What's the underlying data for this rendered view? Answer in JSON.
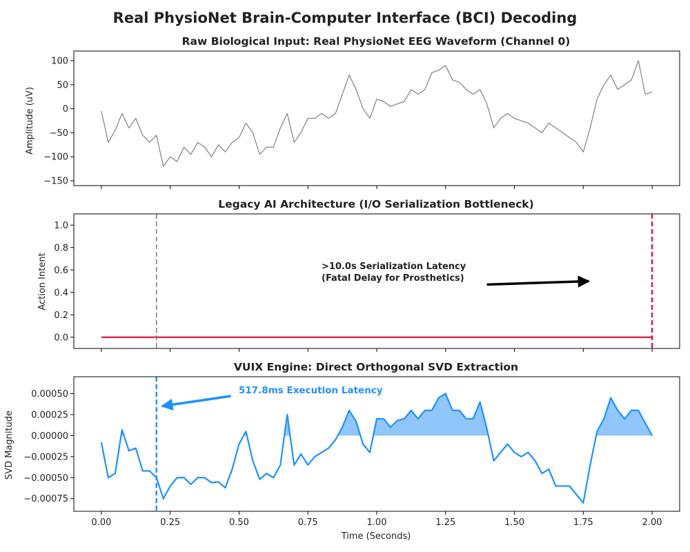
{
  "figure": {
    "title": "Real PhysioNet Brain-Computer Interface (BCI) Decoding"
  },
  "chart_data": [
    {
      "type": "line",
      "title": "Raw Biological Input: Real PhysioNet EEG Waveform (Channel 0)",
      "xlabel": "",
      "ylabel": "Amplitude (uV)",
      "xlim": [
        -0.1,
        2.1
      ],
      "ylim": [
        -160,
        120
      ],
      "xticks": [
        0.0,
        0.25,
        0.5,
        0.75,
        1.0,
        1.25,
        1.5,
        1.75,
        2.0
      ],
      "xtick_labels_visible": false,
      "yticks": [
        -150,
        -100,
        -50,
        0,
        50,
        100
      ],
      "ytick_labels": [
        "−150",
        "−100",
        "−50",
        "0",
        "50",
        "100"
      ],
      "grid": false,
      "series": [
        {
          "color": "#808080",
          "x": [
            0.0,
            0.025,
            0.05,
            0.075,
            0.1,
            0.125,
            0.15,
            0.175,
            0.2,
            0.225,
            0.25,
            0.275,
            0.3,
            0.325,
            0.35,
            0.375,
            0.4,
            0.425,
            0.45,
            0.475,
            0.5,
            0.525,
            0.55,
            0.575,
            0.6,
            0.625,
            0.65,
            0.675,
            0.7,
            0.725,
            0.75,
            0.775,
            0.8,
            0.825,
            0.85,
            0.875,
            0.9,
            0.925,
            0.95,
            0.975,
            1.0,
            1.025,
            1.05,
            1.075,
            1.1,
            1.125,
            1.15,
            1.175,
            1.2,
            1.225,
            1.25,
            1.275,
            1.3,
            1.325,
            1.35,
            1.375,
            1.4,
            1.425,
            1.45,
            1.475,
            1.5,
            1.525,
            1.55,
            1.575,
            1.6,
            1.625,
            1.65,
            1.675,
            1.7,
            1.725,
            1.75,
            1.775,
            1.8,
            1.825,
            1.85,
            1.875,
            1.9,
            1.925,
            1.95,
            1.975,
            2.0
          ],
          "values": [
            -5,
            -70,
            -45,
            -10,
            -40,
            -20,
            -55,
            -70,
            -55,
            -120,
            -100,
            -110,
            -80,
            -95,
            -70,
            -80,
            -100,
            -75,
            -90,
            -70,
            -60,
            -30,
            -50,
            -95,
            -80,
            -80,
            -40,
            -10,
            -70,
            -50,
            -20,
            -20,
            -10,
            -20,
            -10,
            30,
            70,
            40,
            0,
            -20,
            20,
            15,
            5,
            10,
            15,
            40,
            30,
            40,
            75,
            80,
            90,
            60,
            55,
            40,
            30,
            40,
            10,
            -40,
            -20,
            -10,
            -20,
            -25,
            -30,
            -40,
            -50,
            -30,
            -40,
            -50,
            -60,
            -70,
            -90,
            -40,
            20,
            50,
            70,
            40,
            50,
            60,
            100,
            30,
            35
          ]
        }
      ]
    },
    {
      "type": "line",
      "title": "Legacy AI Architecture (I/O Serialization Bottleneck)",
      "xlabel": "",
      "ylabel": "Action Intent",
      "xlim": [
        -0.1,
        2.1
      ],
      "ylim": [
        -0.1,
        1.1
      ],
      "xticks": [
        0.0,
        0.25,
        0.5,
        0.75,
        1.0,
        1.25,
        1.5,
        1.75,
        2.0
      ],
      "xtick_labels_visible": false,
      "yticks": [
        0.0,
        0.2,
        0.4,
        0.6,
        0.8,
        1.0
      ],
      "ytick_labels": [
        "0.0",
        "0.2",
        "0.4",
        "0.6",
        "0.8",
        "1.0"
      ],
      "grid": false,
      "series": [
        {
          "color": "#dc143c",
          "x": [
            0.0,
            2.0
          ],
          "values": [
            0.0,
            0.0
          ]
        }
      ],
      "vlines": [
        {
          "x": 0.2,
          "color": "#808080",
          "style": "dashed"
        },
        {
          "x": 2.0,
          "color": "#dc143c",
          "style": "dashed"
        }
      ],
      "annotation": {
        "lines": [
          ">10.0s Serialization Latency",
          "(Fatal Delay for Prosthetics)"
        ],
        "text_x": 0.8,
        "text_y": 0.56,
        "arrow_from": [
          1.4,
          0.47
        ],
        "arrow_to": [
          1.77,
          0.5
        ]
      }
    },
    {
      "type": "area",
      "title": "VUIX Engine: Direct Orthogonal SVD Extraction",
      "xlabel": "Time (Seconds)",
      "ylabel": "SVD Magnitude",
      "xlim": [
        -0.1,
        2.1
      ],
      "ylim": [
        -0.0009,
        0.0007
      ],
      "xticks": [
        0.0,
        0.25,
        0.5,
        0.75,
        1.0,
        1.25,
        1.5,
        1.75,
        2.0
      ],
      "xtick_labels": [
        "0.00",
        "0.25",
        "0.50",
        "0.75",
        "1.00",
        "1.25",
        "1.50",
        "1.75",
        "2.00"
      ],
      "yticks": [
        -0.00075,
        -0.0005,
        -0.00025,
        0.0,
        0.00025,
        0.0005
      ],
      "ytick_labels": [
        "−0.00075",
        "−0.00050",
        "−0.00025",
        "0.00000",
        "0.00025",
        "0.00050"
      ],
      "grid": false,
      "series": [
        {
          "color": "#1e90ff",
          "fill_color": "#90c6fa",
          "fill_where": "positive",
          "x": [
            0.0,
            0.025,
            0.05,
            0.075,
            0.1,
            0.125,
            0.15,
            0.175,
            0.2,
            0.225,
            0.25,
            0.275,
            0.3,
            0.325,
            0.35,
            0.375,
            0.4,
            0.425,
            0.45,
            0.475,
            0.5,
            0.525,
            0.55,
            0.575,
            0.6,
            0.625,
            0.65,
            0.675,
            0.7,
            0.725,
            0.75,
            0.775,
            0.8,
            0.825,
            0.85,
            0.875,
            0.9,
            0.925,
            0.95,
            0.975,
            1.0,
            1.025,
            1.05,
            1.075,
            1.1,
            1.125,
            1.15,
            1.175,
            1.2,
            1.225,
            1.25,
            1.275,
            1.3,
            1.325,
            1.35,
            1.375,
            1.4,
            1.425,
            1.45,
            1.475,
            1.5,
            1.525,
            1.55,
            1.575,
            1.6,
            1.625,
            1.65,
            1.675,
            1.7,
            1.725,
            1.75,
            1.775,
            1.8,
            1.825,
            1.85,
            1.875,
            1.9,
            1.925,
            1.95,
            1.975,
            2.0
          ],
          "values": [
            -8e-05,
            -0.0005,
            -0.00045,
            7e-05,
            -0.00018,
            -0.00015,
            -0.00042,
            -0.00042,
            -0.0005,
            -0.00075,
            -0.0006,
            -0.0005,
            -0.0005,
            -0.00058,
            -0.0005,
            -0.0005,
            -0.00056,
            -0.00055,
            -0.00062,
            -0.0004,
            -0.0001,
            5e-05,
            -0.0003,
            -0.00052,
            -0.00045,
            -0.0005,
            -0.00035,
            0.00025,
            -0.00035,
            -0.00022,
            -0.00035,
            -0.00025,
            -0.0002,
            -0.00015,
            -5e-05,
            0.0001,
            0.0003,
            0.00017,
            -0.0001,
            -0.0002,
            0.0002,
            0.0002,
            0.0001,
            0.00018,
            0.0002,
            0.0003,
            0.0002,
            0.0003,
            0.0003,
            0.00045,
            0.0005,
            0.0003,
            0.0003,
            0.0002,
            0.0002,
            0.0004,
            8e-05,
            -0.0003,
            -0.0002,
            -0.0001,
            -0.0002,
            -0.00025,
            -0.0002,
            -0.0003,
            -0.00045,
            -0.0004,
            -0.0006,
            -0.0006,
            -0.0006,
            -0.0007,
            -0.0008,
            -0.00035,
            5e-05,
            0.0002,
            0.00045,
            0.0003,
            0.0002,
            0.0003,
            0.0003,
            0.00015,
            0.0
          ]
        }
      ],
      "vlines": [
        {
          "x": 0.2,
          "color": "#1e90ff",
          "style": "dashed"
        }
      ],
      "annotation": {
        "lines": [
          "517.8ms Execution Latency"
        ],
        "text_x": 0.5,
        "text_y": 0.00053,
        "arrow_from": [
          0.47,
          0.00047
        ],
        "arrow_to": [
          0.22,
          0.00035
        ]
      }
    }
  ]
}
